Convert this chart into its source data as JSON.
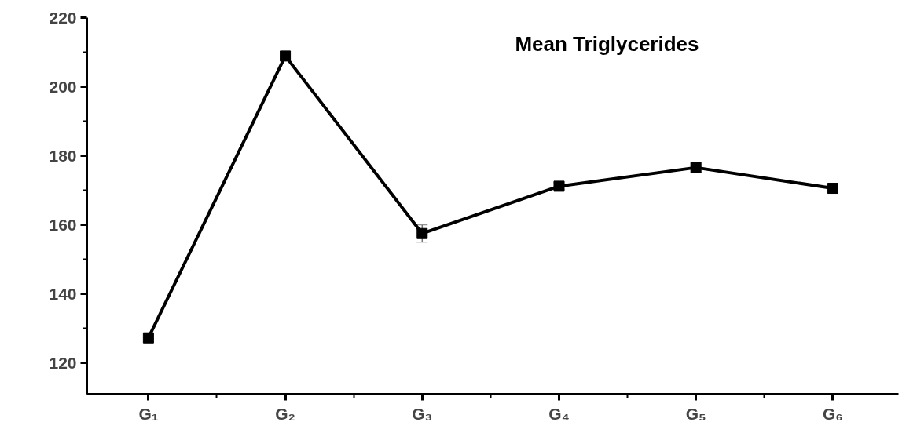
{
  "chart_data": {
    "type": "line",
    "title": "Mean Triglycerides",
    "categories": [
      "G₁",
      "G₂",
      "G₃",
      "G₄",
      "G₅",
      "G₆"
    ],
    "series": [
      {
        "color": "#000000",
        "values": [
          127.3,
          208.9,
          157.5,
          171.2,
          176.6,
          170.6
        ],
        "errors": [
          null,
          null,
          2.5,
          1,
          null,
          0.8
        ]
      }
    ],
    "ylim": [
      111,
      220
    ],
    "yticks": [
      120,
      140,
      160,
      180,
      200,
      220
    ],
    "grid": false,
    "marker": "square",
    "line_style": "solid"
  }
}
